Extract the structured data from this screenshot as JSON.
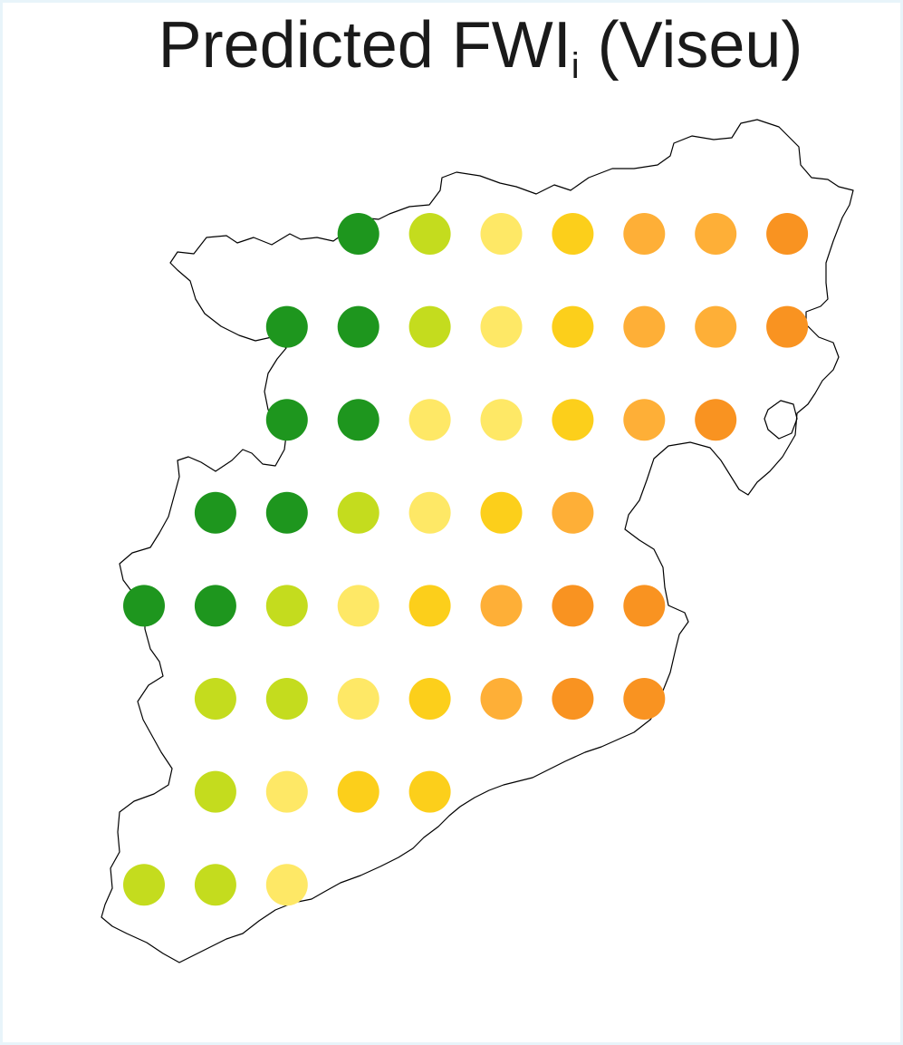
{
  "title": {
    "main": "Predicted FWI",
    "subscript": "i",
    "suffix": " (Viseu)"
  },
  "colors": {
    "outline": "#000000",
    "class1": "#1e961e",
    "class2": "#c4dc1e",
    "class3": "#fee866",
    "class4": "#fccf1b",
    "class5": "#feaf37",
    "class6": "#f99321"
  },
  "chart_data": {
    "type": "grid-point map",
    "grid": {
      "columns": [
        1,
        2,
        3,
        4,
        5,
        6,
        7,
        8,
        9,
        10
      ],
      "rows": [
        1,
        2,
        3,
        4,
        5,
        6,
        7,
        8
      ]
    },
    "points": [
      {
        "row": 1,
        "col": 4,
        "class": 1
      },
      {
        "row": 1,
        "col": 5,
        "class": 2
      },
      {
        "row": 1,
        "col": 6,
        "class": 3
      },
      {
        "row": 1,
        "col": 7,
        "class": 4
      },
      {
        "row": 1,
        "col": 8,
        "class": 5
      },
      {
        "row": 1,
        "col": 9,
        "class": 5
      },
      {
        "row": 1,
        "col": 10,
        "class": 6
      },
      {
        "row": 2,
        "col": 3,
        "class": 1
      },
      {
        "row": 2,
        "col": 4,
        "class": 1
      },
      {
        "row": 2,
        "col": 5,
        "class": 2
      },
      {
        "row": 2,
        "col": 6,
        "class": 3
      },
      {
        "row": 2,
        "col": 7,
        "class": 4
      },
      {
        "row": 2,
        "col": 8,
        "class": 5
      },
      {
        "row": 2,
        "col": 9,
        "class": 5
      },
      {
        "row": 2,
        "col": 10,
        "class": 6
      },
      {
        "row": 3,
        "col": 3,
        "class": 1
      },
      {
        "row": 3,
        "col": 4,
        "class": 1
      },
      {
        "row": 3,
        "col": 5,
        "class": 3
      },
      {
        "row": 3,
        "col": 6,
        "class": 3
      },
      {
        "row": 3,
        "col": 7,
        "class": 4
      },
      {
        "row": 3,
        "col": 8,
        "class": 5
      },
      {
        "row": 3,
        "col": 9,
        "class": 6
      },
      {
        "row": 4,
        "col": 2,
        "class": 1
      },
      {
        "row": 4,
        "col": 3,
        "class": 1
      },
      {
        "row": 4,
        "col": 4,
        "class": 2
      },
      {
        "row": 4,
        "col": 5,
        "class": 3
      },
      {
        "row": 4,
        "col": 6,
        "class": 4
      },
      {
        "row": 4,
        "col": 7,
        "class": 5
      },
      {
        "row": 5,
        "col": 1,
        "class": 1
      },
      {
        "row": 5,
        "col": 2,
        "class": 1
      },
      {
        "row": 5,
        "col": 3,
        "class": 2
      },
      {
        "row": 5,
        "col": 4,
        "class": 3
      },
      {
        "row": 5,
        "col": 5,
        "class": 4
      },
      {
        "row": 5,
        "col": 6,
        "class": 5
      },
      {
        "row": 5,
        "col": 7,
        "class": 6
      },
      {
        "row": 5,
        "col": 8,
        "class": 6
      },
      {
        "row": 6,
        "col": 2,
        "class": 2
      },
      {
        "row": 6,
        "col": 3,
        "class": 2
      },
      {
        "row": 6,
        "col": 4,
        "class": 3
      },
      {
        "row": 6,
        "col": 5,
        "class": 4
      },
      {
        "row": 6,
        "col": 6,
        "class": 5
      },
      {
        "row": 6,
        "col": 7,
        "class": 6
      },
      {
        "row": 6,
        "col": 8,
        "class": 6
      },
      {
        "row": 7,
        "col": 2,
        "class": 2
      },
      {
        "row": 7,
        "col": 3,
        "class": 3
      },
      {
        "row": 7,
        "col": 4,
        "class": 4
      },
      {
        "row": 7,
        "col": 5,
        "class": 4
      },
      {
        "row": 8,
        "col": 1,
        "class": 2
      },
      {
        "row": 8,
        "col": 2,
        "class": 2
      },
      {
        "row": 8,
        "col": 3,
        "class": 3
      }
    ]
  }
}
